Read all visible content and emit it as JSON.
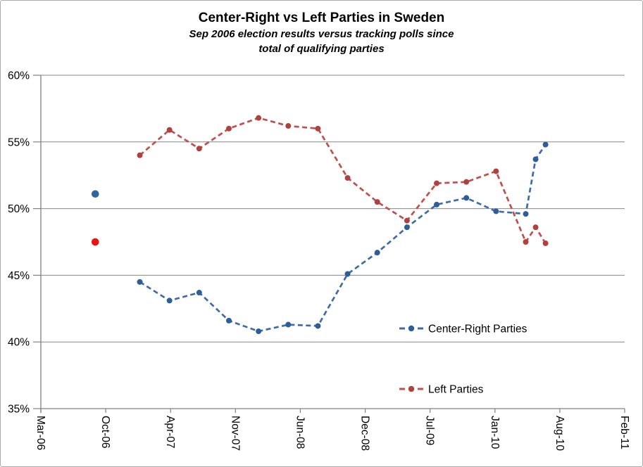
{
  "figure": {
    "title": "Center-Right vs Left Parties in Sweden",
    "subtitle_line1": "Sep 2006 election results versus tracking polls since",
    "subtitle_line2": "total of qualifying parties"
  },
  "chart_data": {
    "type": "line",
    "title": "Center-Right vs Left Parties in Sweden",
    "subtitle": "Sep 2006 election results versus tracking polls since total of qualifying parties",
    "ylabel": "",
    "xlabel": "",
    "ylim": [
      35,
      60
    ],
    "y_tick_values": [
      60,
      55,
      50,
      45,
      40,
      35
    ],
    "y_tick_labels": [
      "60%",
      "55%",
      "50%",
      "45%",
      "40%",
      "35%"
    ],
    "x_tick_labels": [
      "Mar-06",
      "Oct-06",
      "Apr-07",
      "Nov-07",
      "Jun-08",
      "Dec-08",
      "Jul-09",
      "Jan-10",
      "Aug-10",
      "Feb-11"
    ],
    "x_unit": "months since Mar-06",
    "x_range_months": [
      0,
      59
    ],
    "grid": true,
    "legend_position": "inside-right",
    "line_style": "dashed",
    "x_labels": [
      "Jan-07",
      "Apr-07",
      "Jul-07",
      "Oct-07",
      "Jan-08",
      "Apr-08",
      "Jul-08",
      "Oct-08",
      "Jan-09",
      "Apr-09",
      "Jul-09",
      "Oct-09",
      "Jan-10",
      "Apr-10",
      "May-10",
      "Jun-10"
    ],
    "x_months": [
      10,
      13,
      16,
      19,
      22,
      25,
      28,
      31,
      34,
      37,
      40,
      43,
      46,
      49,
      50,
      51
    ],
    "series": [
      {
        "name": "Center-Right Parties",
        "color": "#3F6CA6",
        "marker_color": "#2D5E97",
        "values": [
          44.5,
          43.1,
          43.7,
          41.6,
          40.8,
          41.3,
          41.2,
          45.1,
          46.7,
          48.6,
          50.3,
          50.8,
          49.8,
          49.6,
          53.7,
          54.8
        ]
      },
      {
        "name": "Left Parties",
        "color": "#C0504D",
        "marker_color": "#AF423F",
        "values": [
          54.0,
          55.9,
          54.5,
          56.0,
          56.8,
          56.2,
          56.0,
          52.3,
          50.5,
          49.1,
          51.9,
          52.0,
          52.8,
          47.5,
          48.6,
          47.4
        ]
      }
    ],
    "election_results": [
      {
        "name": "Center-Right Parties Sep-06 election result",
        "x_label": "Sep-06",
        "x_month": 5.5,
        "value": 51.1,
        "color": "#31659C"
      },
      {
        "name": "Left Parties Sep-06 election result",
        "x_label": "Sep-06",
        "x_month": 5.5,
        "value": 47.5,
        "color": "#EE1111"
      }
    ],
    "colors": {
      "gridline": "#878787",
      "axis": "#808080",
      "figure_border": "#ABABAB",
      "text": "#000000"
    }
  }
}
